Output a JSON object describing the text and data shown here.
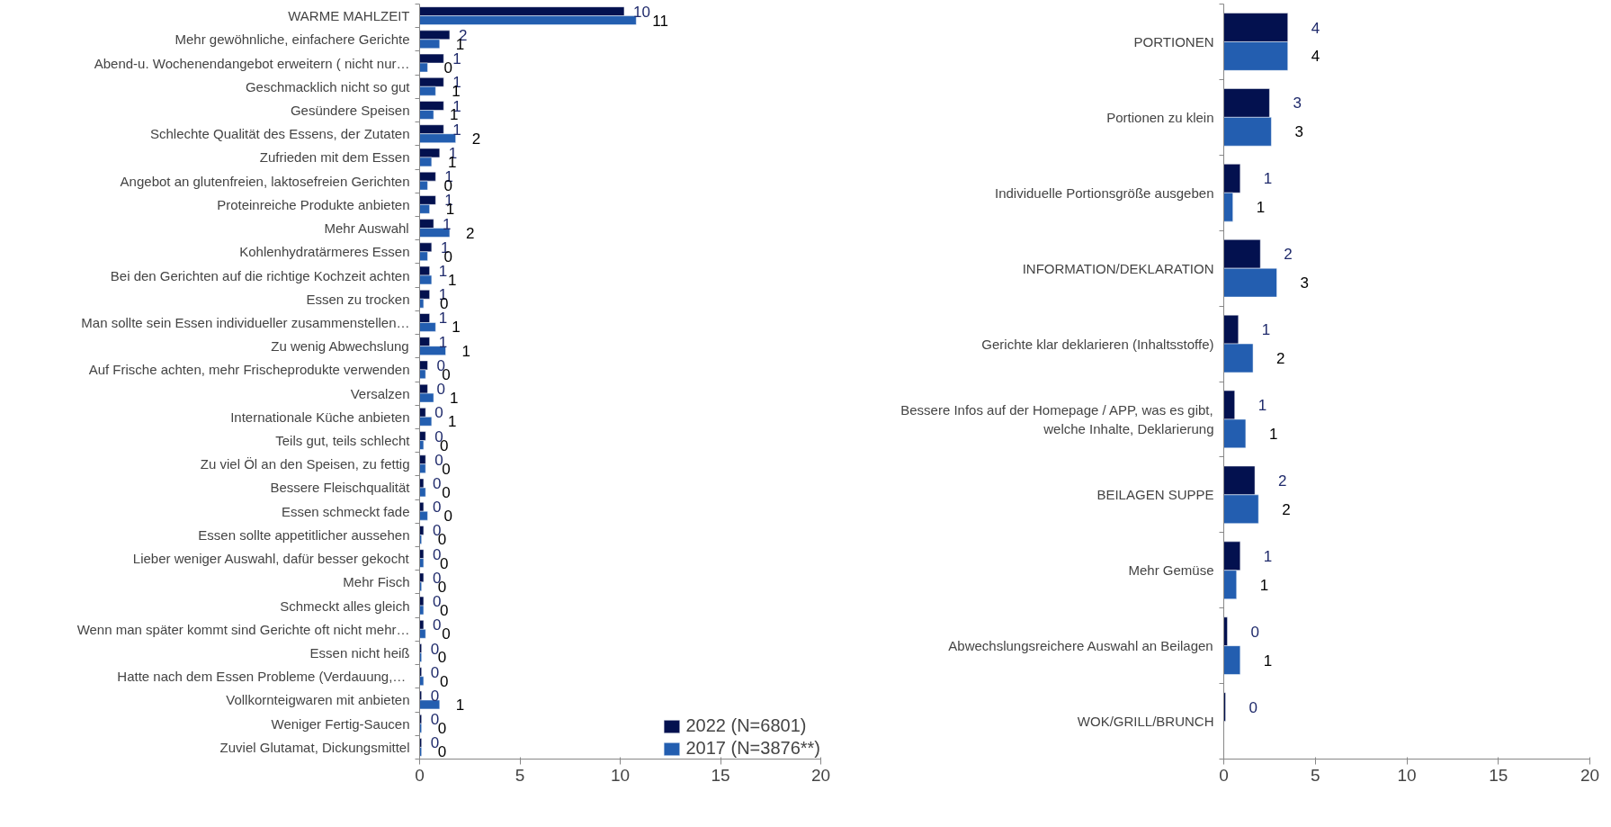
{
  "chart_data": [
    {
      "type": "bar",
      "orientation": "horizontal",
      "xlim": [
        0,
        20
      ],
      "xticks": [
        0,
        5,
        10,
        15,
        20
      ],
      "grid": false,
      "legend": "bottom right",
      "categories": [
        "WARME MAHLZEIT",
        "Mehr gewöhnliche, einfachere Gerichte",
        "Abend-u. Wochenendangebot erweitern ( nicht nur…",
        "Geschmacklich nicht so gut",
        "Gesündere Speisen",
        "Schlechte Qualität des Essens, der Zutaten",
        "Zufrieden mit dem Essen",
        "Angebot an glutenfreien, laktosefreien Gerichten",
        "Proteinreiche Produkte anbieten",
        "Mehr Auswahl",
        "Kohlenhydratärmeres Essen",
        "Bei den Gerichten auf die richtige Kochzeit achten",
        "Essen zu trocken",
        "Man sollte sein Essen individueller zusammenstellen…",
        "Zu wenig Abwechslung",
        "Auf Frische achten, mehr Frischeprodukte verwenden",
        "Versalzen",
        "Internationale Küche anbieten",
        "Teils gut, teils schlecht",
        "Zu viel Öl an den Speisen, zu fettig",
        "Bessere Fleischqualität",
        "Essen schmeckt fade",
        "Essen sollte appetitlicher aussehen",
        "Lieber weniger Auswahl, dafür besser gekocht",
        "Mehr Fisch",
        "Schmeckt alles gleich",
        "Wenn man später kommt sind Gerichte oft nicht mehr…",
        "Essen nicht heiß",
        "Hatte nach dem Essen  Probleme (Verdauung,…",
        "Vollkornteigwaren mit anbieten",
        "Weniger Fertig-Saucen",
        "Zuviel Glutamat, Dickungsmittel"
      ],
      "series": [
        {
          "name": "2022 (N=6801)",
          "color": "#03114f",
          "values": [
            10.2,
            1.5,
            1.2,
            1.2,
            1.2,
            1.2,
            1.0,
            0.8,
            0.8,
            0.7,
            0.6,
            0.5,
            0.5,
            0.5,
            0.5,
            0.4,
            0.4,
            0.3,
            0.3,
            0.3,
            0.2,
            0.2,
            0.2,
            0.2,
            0.2,
            0.2,
            0.2,
            0.1,
            0.1,
            0.1,
            0.1,
            0.1
          ],
          "value_labels": [
            "10",
            "2",
            "1",
            "1",
            "1",
            "1",
            "1",
            "1",
            "1",
            "1",
            "1",
            "1",
            "1",
            "1",
            "1",
            "0",
            "0",
            "0",
            "0",
            "0",
            "0",
            "0",
            "0",
            "0",
            "0",
            "0",
            "0",
            "0",
            "0",
            "0",
            "0",
            "0"
          ]
        },
        {
          "name": "2017 (N=3876**)",
          "color": "#235eb0",
          "values": [
            10.8,
            1.0,
            0.4,
            0.8,
            0.7,
            1.8,
            0.6,
            0.4,
            0.5,
            1.5,
            0.4,
            0.6,
            0.2,
            0.8,
            1.3,
            0.3,
            0.7,
            0.6,
            0.2,
            0.3,
            0.3,
            0.4,
            0.1,
            0.2,
            0.1,
            0.2,
            0.3,
            0.1,
            0.2,
            1.0,
            0.1,
            0.1
          ],
          "value_labels": [
            "11",
            "1",
            "0",
            "1",
            "1",
            "2",
            "1",
            "0",
            "1",
            "2",
            "0",
            "1",
            "0",
            "1",
            "1",
            "0",
            "1",
            "1",
            "0",
            "0",
            "0",
            "0",
            "0",
            "0",
            "0",
            "0",
            "0",
            "0",
            "0",
            "1",
            "0",
            "0"
          ]
        }
      ]
    },
    {
      "type": "bar",
      "orientation": "horizontal",
      "xlim": [
        0,
        20
      ],
      "xticks": [
        0,
        5,
        10,
        15,
        20
      ],
      "grid": false,
      "categories": [
        "PORTIONEN",
        "Portionen zu klein",
        "Individuelle Portionsgröße ausgeben",
        "INFORMATION/DEKLARATION",
        "Gerichte klar deklarieren (Inhaltsstoffe)",
        "Bessere Infos auf der Homepage / APP, was es gibt,\nwelche Inhalte, Deklarierung",
        "BEILAGEN SUPPE",
        "Mehr Gemüse",
        "Abwechslungsreichere Auswahl an Beilagen",
        "WOK/GRILL/BRUNCH"
      ],
      "series": [
        {
          "color": "#03114f",
          "values": [
            3.5,
            2.5,
            0.9,
            2.0,
            0.8,
            0.6,
            1.7,
            0.9,
            0.2,
            0.1
          ],
          "value_labels": [
            "4",
            "3",
            "1",
            "2",
            "1",
            "1",
            "2",
            "1",
            "0",
            "0"
          ]
        },
        {
          "color": "#235eb0",
          "values": [
            3.5,
            2.6,
            0.5,
            2.9,
            1.6,
            1.2,
            1.9,
            0.7,
            0.9,
            null
          ],
          "value_labels": [
            "4",
            "3",
            "1",
            "3",
            "2",
            "1",
            "2",
            "1",
            "1",
            null
          ]
        }
      ]
    }
  ]
}
